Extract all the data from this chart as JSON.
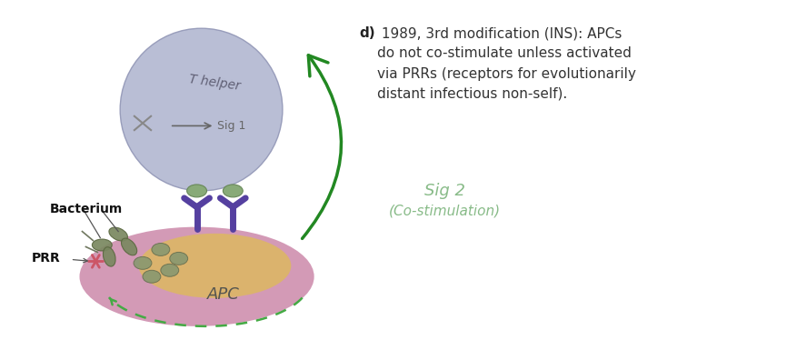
{
  "bg_color": "#ffffff",
  "title_bold": "d)",
  "title_rest": " 1989, 3rd modification (INS): APCs\ndo not co-stimulate unless activated\nvia PRRs (receptors for evolutionarily\ndistant infectious non-self).",
  "sig2_line1": "Sig 2",
  "sig2_line2": "(Co-stimulation)",
  "apc_label": "APC",
  "t_helper_label": "T helper",
  "sig1_label": "Sig 1",
  "bacterium_label": "Bacterium",
  "prr_label": "PRR",
  "apc_outer_color": "#cc88aa",
  "apc_inner_color": "#ddb860",
  "t_helper_color": "#b0b5d0",
  "t_helper_edge": "#9095b5",
  "sig2_color": "#88bb88",
  "green_arrow_color": "#228822",
  "dashed_green": "#44aa44",
  "purple_color": "#5540a0",
  "purple_edge": "#403080",
  "bacterium_color": "#7a8860",
  "bacterium_edge": "#5a6840",
  "blob_color": "#889870",
  "blob_edge": "#687050",
  "prr_color": "#cc5566",
  "text_color": "#333333",
  "label_color": "#111111",
  "tcr_color": "#888888",
  "sig1_color": "#666666",
  "green_receptor_color": "#88aa78",
  "green_receptor_edge": "#688858"
}
